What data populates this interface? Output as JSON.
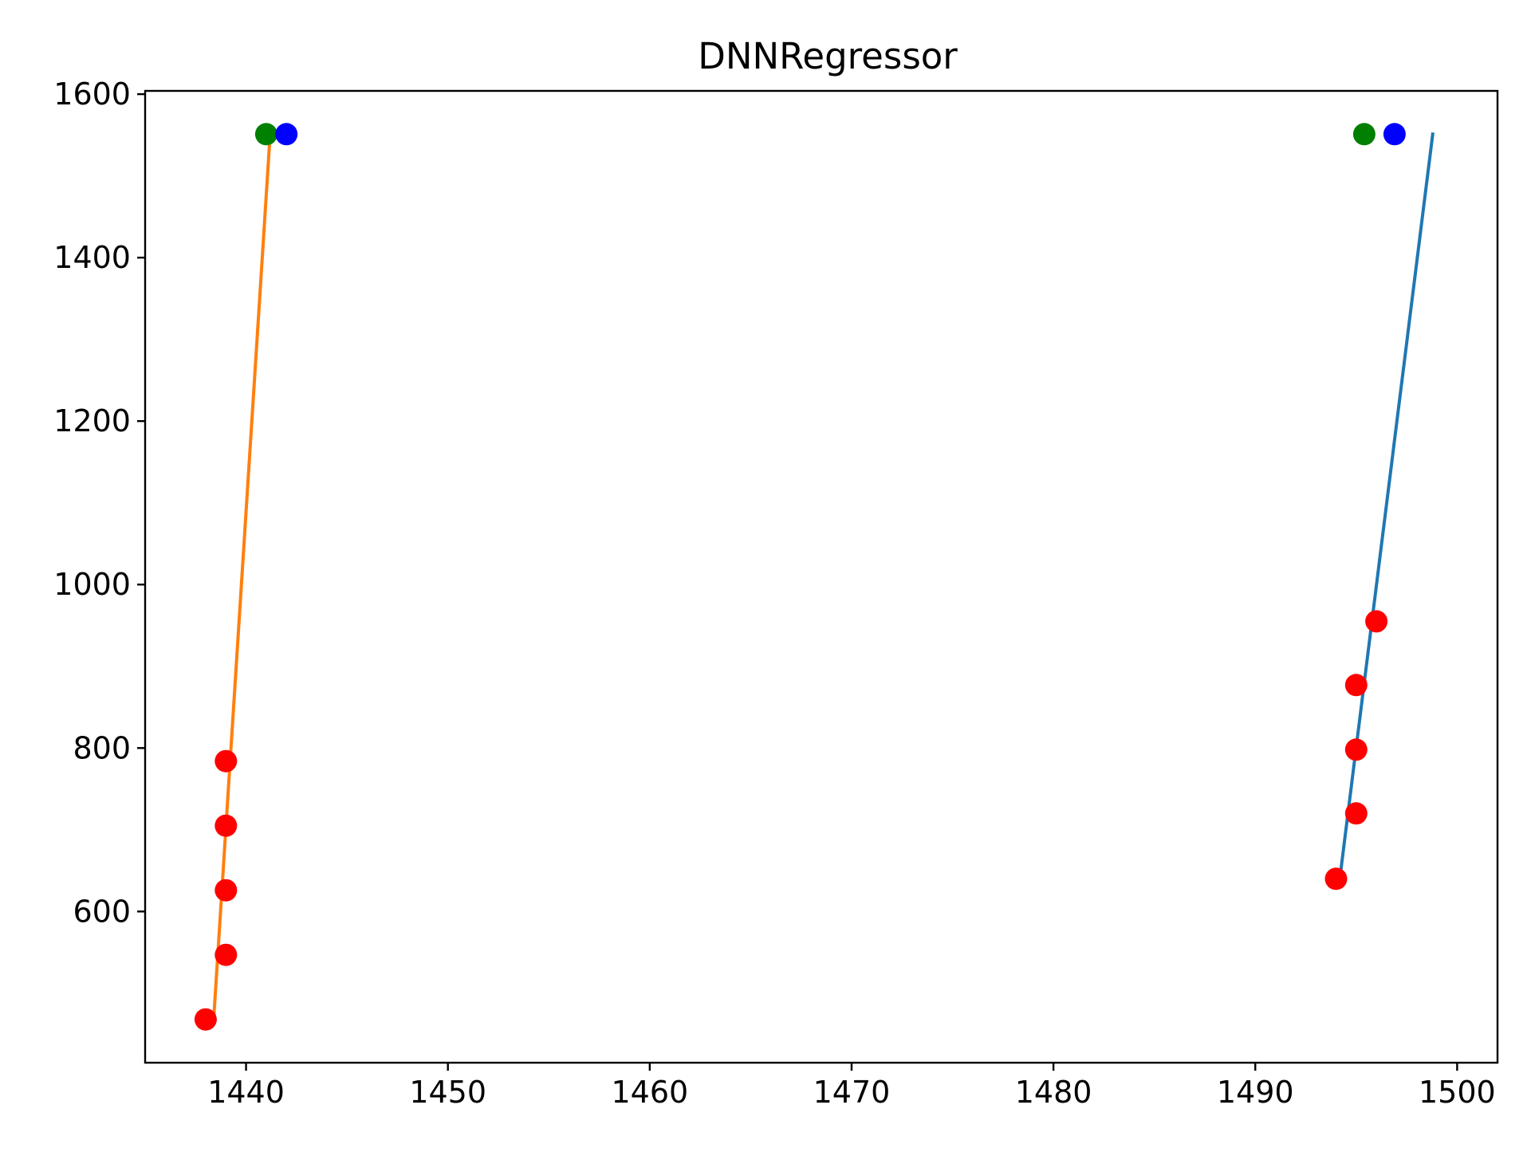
{
  "chart_data": {
    "type": "scatter",
    "title": "DNNRegressor",
    "xlabel": "",
    "ylabel": "",
    "xlim": [
      1435,
      1502
    ],
    "ylim": [
      415,
      1604
    ],
    "xticks": [
      1440,
      1450,
      1460,
      1470,
      1480,
      1490,
      1500
    ],
    "yticks": [
      600,
      800,
      1000,
      1200,
      1400,
      1600
    ],
    "grid": false,
    "legend": "none",
    "series": [
      {
        "kind": "scatter",
        "color": "#ff0000",
        "points": [
          [
            1438,
            468
          ],
          [
            1439,
            547
          ],
          [
            1439,
            626
          ],
          [
            1439,
            705
          ],
          [
            1439,
            784
          ],
          [
            1494,
            640
          ],
          [
            1495,
            720
          ],
          [
            1495,
            798
          ],
          [
            1495,
            877
          ],
          [
            1496,
            955
          ]
        ]
      },
      {
        "kind": "scatter",
        "color": "#008000",
        "points": [
          [
            1441,
            1551
          ],
          [
            1495.4,
            1551
          ]
        ]
      },
      {
        "kind": "scatter",
        "color": "#0000ff",
        "points": [
          [
            1442,
            1551
          ],
          [
            1496.9,
            1551
          ]
        ]
      },
      {
        "kind": "line",
        "color": "#ff7f0e",
        "points": [
          [
            1438.4,
            470
          ],
          [
            1441.2,
            1553
          ]
        ]
      },
      {
        "kind": "line",
        "color": "#1f77b4",
        "points": [
          [
            1494.2,
            643
          ],
          [
            1498.8,
            1553
          ]
        ]
      }
    ]
  }
}
